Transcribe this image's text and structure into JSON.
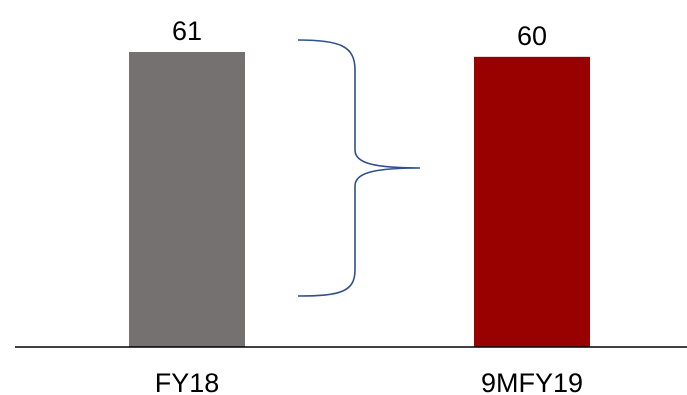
{
  "chart_data": {
    "type": "bar",
    "title": "",
    "xlabel": "",
    "ylabel": "",
    "categories": [
      "FY18",
      "9MFY19"
    ],
    "values": [
      61,
      60
    ],
    "value_labels": [
      "61",
      "60"
    ],
    "colors": [
      "#767171",
      "#990000"
    ],
    "ylim": [
      0,
      61
    ],
    "grid": false,
    "annotations": [
      {
        "type": "brace",
        "shape": "right-curly-brace",
        "color": "#2F4F8F"
      }
    ]
  }
}
